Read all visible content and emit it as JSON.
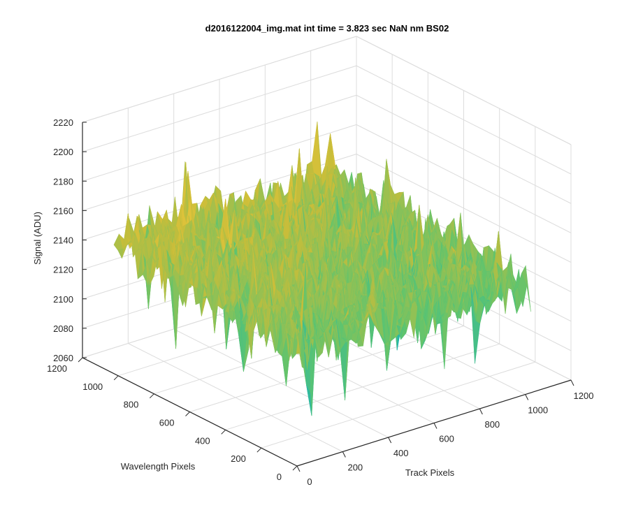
{
  "chart_data": {
    "type": "surface",
    "title": "d2016122004_img.mat int time = 3.823 sec  NaN nm BS02",
    "xlabel": "Track Pixels",
    "ylabel": "Wavelength Pixels",
    "zlabel": "Signal (ADU)",
    "xlim": [
      0,
      1200
    ],
    "ylim": [
      0,
      1200
    ],
    "zlim": [
      2060,
      2220
    ],
    "x_ticks": [
      0,
      200,
      400,
      600,
      800,
      1000,
      1200
    ],
    "y_ticks": [
      0,
      200,
      400,
      600,
      800,
      1000,
      1200
    ],
    "z_ticks": [
      2060,
      2080,
      2100,
      2120,
      2140,
      2160,
      2180,
      2200,
      2220
    ],
    "data_extent": {
      "x": [
        0,
        1024
      ],
      "y": [
        0,
        1024
      ]
    },
    "mean_signal": 2140,
    "signal_range": [
      2070,
      2200
    ],
    "grid": true,
    "colormap": [
      "#3e26a8",
      "#1f8fd6",
      "#1bb5b3",
      "#5fc46e",
      "#c6bd3a",
      "#f6c83a",
      "#f9fb15"
    ]
  }
}
